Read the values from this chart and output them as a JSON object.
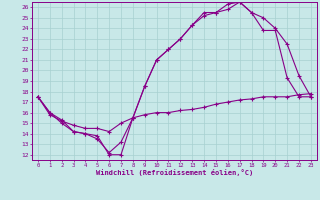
{
  "xlabel": "Windchill (Refroidissement éolien,°C)",
  "xlim": [
    -0.5,
    23.5
  ],
  "ylim": [
    11.5,
    26.5
  ],
  "xticks": [
    0,
    1,
    2,
    3,
    4,
    5,
    6,
    7,
    8,
    9,
    10,
    11,
    12,
    13,
    14,
    15,
    16,
    17,
    18,
    19,
    20,
    21,
    22,
    23
  ],
  "yticks": [
    12,
    13,
    14,
    15,
    16,
    17,
    18,
    19,
    20,
    21,
    22,
    23,
    24,
    25,
    26
  ],
  "bg_color": "#c8e8e8",
  "grid_color": "#a8d0d0",
  "line_color": "#880088",
  "line1_x": [
    0,
    1,
    2,
    3,
    4,
    5,
    6,
    7,
    8,
    9,
    10,
    11,
    12,
    13,
    14,
    15,
    16,
    17,
    18,
    19,
    20,
    21,
    22,
    23
  ],
  "line1_y": [
    17.5,
    16.0,
    15.0,
    14.2,
    14.0,
    13.5,
    12.2,
    13.2,
    15.5,
    18.5,
    21.0,
    22.0,
    23.0,
    24.3,
    25.2,
    25.5,
    26.3,
    26.5,
    25.5,
    25.0,
    24.0,
    22.5,
    19.5,
    17.5
  ],
  "line2_x": [
    0,
    1,
    2,
    3,
    4,
    5,
    6,
    7,
    8,
    9,
    10,
    11,
    12,
    13,
    14,
    15,
    16,
    17,
    18,
    19,
    20,
    21,
    22,
    23
  ],
  "line2_y": [
    17.5,
    16.0,
    15.3,
    14.2,
    14.0,
    13.8,
    12.0,
    12.0,
    15.5,
    18.5,
    21.0,
    22.0,
    23.0,
    24.3,
    25.5,
    25.5,
    25.8,
    26.5,
    25.5,
    23.8,
    23.8,
    19.3,
    17.5,
    17.5
  ],
  "line3_x": [
    0,
    1,
    2,
    3,
    4,
    5,
    6,
    7,
    8,
    9,
    10,
    11,
    12,
    13,
    14,
    15,
    16,
    17,
    18,
    19,
    20,
    21,
    22,
    23
  ],
  "line3_y": [
    17.5,
    15.8,
    15.2,
    14.8,
    14.5,
    14.5,
    14.2,
    15.0,
    15.5,
    15.8,
    16.0,
    16.0,
    16.2,
    16.3,
    16.5,
    16.8,
    17.0,
    17.2,
    17.3,
    17.5,
    17.5,
    17.5,
    17.7,
    17.8
  ]
}
